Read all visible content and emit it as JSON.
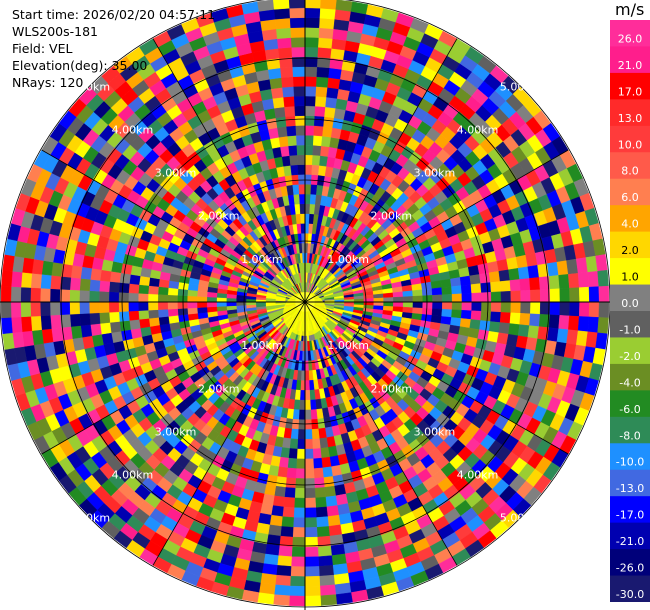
{
  "info": {
    "start_time": "Start time: 2026/02/20 04:57:11",
    "device": "WLS200s-181",
    "field": "Field: VEL",
    "elevation": "Elevation(deg): 35.00",
    "nrays": "NRays: 120"
  },
  "colorbar": {
    "unit": "m/s",
    "ticks": [
      "26.0",
      "21.0",
      "17.0",
      "13.0",
      "10.0",
      "8.0",
      "6.0",
      "4.0",
      "2.0",
      "1.0",
      "0.0",
      "-1.0",
      "-2.0",
      "-4.0",
      "-6.0",
      "-8.0",
      "-10.0",
      "-13.0",
      "-17.0",
      "-21.0",
      "-26.0",
      "-30.0"
    ],
    "colors": [
      "#ff2d9a",
      "#ff1e8c",
      "#ff0000",
      "#ff2a2a",
      "#ff3b3b",
      "#ff5a4a",
      "#ff7f50",
      "#ffa500",
      "#ffd700",
      "#ffff00",
      "#808080",
      "#606060",
      "#9acd32",
      "#6b8e23",
      "#228b22",
      "#2e8b57",
      "#1e90ff",
      "#4169e1",
      "#0000ff",
      "#0000b0",
      "#00007a",
      "#191970"
    ]
  },
  "chart_data": {
    "type": "ppi",
    "field": "VEL",
    "unit": "m/s",
    "nrays": 120,
    "elevation_deg": 35.0,
    "range_rings_km": [
      1.0,
      2.0,
      3.0,
      4.0,
      5.0
    ],
    "ring_labels": [
      "1.00km",
      "2.00km",
      "3.00km",
      "4.00km",
      "5.00km"
    ],
    "vmin": -30.0,
    "vmax": 26.0
  }
}
